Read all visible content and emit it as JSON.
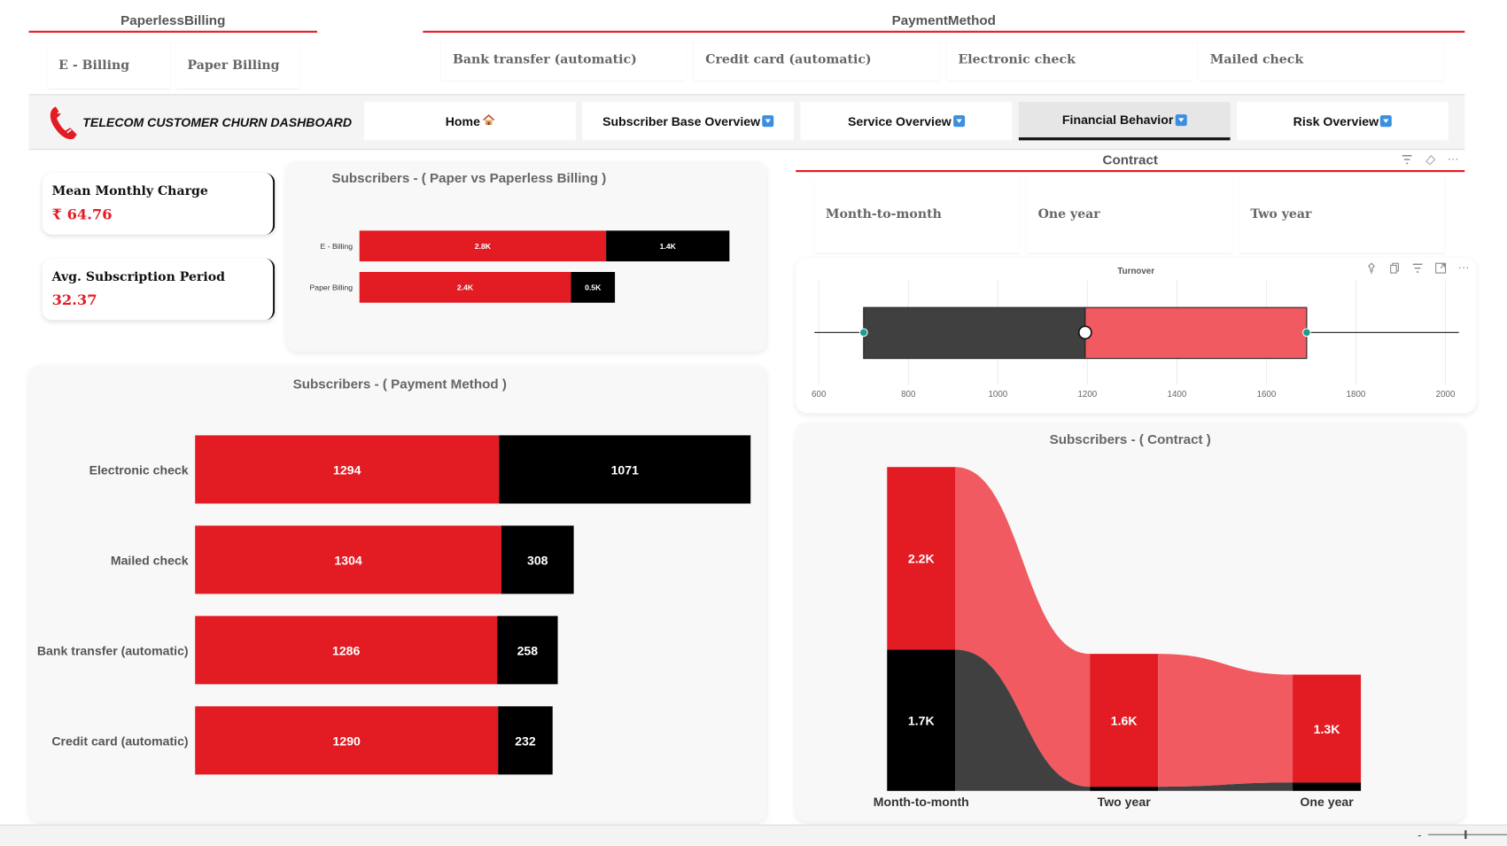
{
  "slicers": {
    "paperless": {
      "title": "PaperlessBilling",
      "options": [
        "E - Billing",
        "Paper Billing"
      ]
    },
    "payment": {
      "title": "PaymentMethod",
      "options": [
        "Bank transfer (automatic)",
        "Credit card (automatic)",
        "Electronic check",
        "Mailed check"
      ]
    },
    "contract": {
      "title": "Contract",
      "options": [
        "Month-to-month",
        "One year",
        "Two year"
      ]
    }
  },
  "header": {
    "title": "TELECOM CUSTOMER CHURN DASHBOARD",
    "nav": [
      {
        "label": "Home",
        "icon": "house-icon"
      },
      {
        "label": "Subscriber Base Overview",
        "icon": "dropdown-box-icon"
      },
      {
        "label": "Service Overview",
        "icon": "dropdown-box-icon"
      },
      {
        "label": "Financial Behavior",
        "icon": "dropdown-box-icon",
        "active": true
      },
      {
        "label": "Risk Overview",
        "icon": "dropdown-box-icon"
      }
    ]
  },
  "kpis": [
    {
      "label": "Mean Monthly Charge",
      "value": "₹ 64.76"
    },
    {
      "label": "Avg. Subscription Period",
      "value": "32.37"
    }
  ],
  "colors": {
    "accent": "#e31b23",
    "black": "#000000",
    "accent_light": "#f05a60",
    "dark_gray": "#404040"
  },
  "chart_data": [
    {
      "type": "bar",
      "orientation": "horizontal",
      "stacked": true,
      "title": "Subscribers - ( Paper vs Paperless Billing )",
      "categories": [
        "E - Billing",
        "Paper Billing"
      ],
      "series": [
        {
          "values": [
            2800,
            2400
          ],
          "labels": [
            "2.8K",
            "2.4K"
          ],
          "color": "#e31b23"
        },
        {
          "values": [
            1400,
            500
          ],
          "labels": [
            "1.4K",
            "0.5K"
          ],
          "color": "#000000"
        }
      ]
    },
    {
      "type": "bar",
      "orientation": "horizontal",
      "stacked": true,
      "title": "Subscribers - ( Payment Method )",
      "categories": [
        "Electronic check",
        "Mailed check",
        "Bank transfer (automatic)",
        "Credit card (automatic)"
      ],
      "series": [
        {
          "values": [
            1294,
            1304,
            1286,
            1290
          ],
          "color": "#e31b23"
        },
        {
          "values": [
            1071,
            308,
            258,
            232
          ],
          "color": "#000000"
        }
      ]
    },
    {
      "type": "box",
      "title": "Turnover",
      "whisker_low": 700,
      "q1": 700,
      "median": 1195,
      "q3": 1690,
      "whisker_high": 2030,
      "line_start": 590,
      "x_ticks": [
        600,
        800,
        1000,
        1200,
        1400,
        1600,
        1800,
        2000
      ],
      "xlim": [
        590,
        2030
      ]
    },
    {
      "type": "ribbon",
      "title": "Subscribers - ( Contract )",
      "categories": [
        "Month-to-month",
        "Two year",
        "One year"
      ],
      "series": [
        {
          "values": [
            2200,
            1600,
            1300
          ],
          "labels": [
            "2.2K",
            "1.6K",
            "1.3K"
          ],
          "color": "#e31b23"
        },
        {
          "values": [
            1700,
            50,
            100
          ],
          "labels": [
            "1.7K",
            "",
            ""
          ],
          "color": "#000000"
        }
      ]
    }
  ]
}
